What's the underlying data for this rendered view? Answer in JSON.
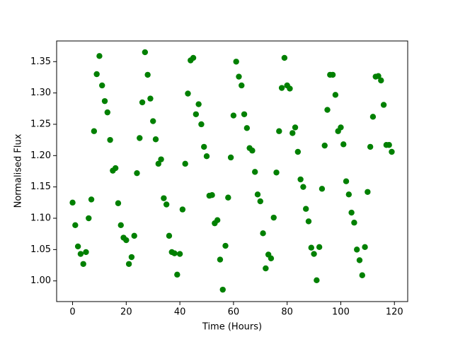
{
  "chart_data": {
    "type": "scatter",
    "xlabel": "Time (Hours)",
    "ylabel": "Normalised Flux",
    "color": "#008000",
    "grid": false,
    "x": [
      0,
      1,
      2,
      3,
      4,
      5,
      6,
      7,
      8,
      9,
      10,
      11,
      12,
      13,
      14,
      15,
      16,
      17,
      18,
      19,
      20,
      21,
      22,
      23,
      24,
      25,
      26,
      27,
      28,
      29,
      30,
      31,
      32,
      33,
      34,
      35,
      36,
      37,
      38,
      39,
      40,
      41,
      42,
      43,
      44,
      45,
      46,
      47,
      48,
      49,
      50,
      51,
      52,
      53,
      54,
      55,
      56,
      57,
      58,
      59,
      60,
      61,
      62,
      63,
      64,
      65,
      66,
      67,
      68,
      69,
      70,
      71,
      72,
      73,
      74,
      75,
      76,
      77,
      78,
      79,
      80,
      81,
      82,
      83,
      84,
      85,
      86,
      87,
      88,
      89,
      90,
      91,
      92,
      93,
      94,
      95,
      96,
      97,
      98,
      99,
      100,
      101,
      102,
      103,
      104,
      105,
      106,
      107,
      108,
      109,
      110,
      111,
      112,
      113,
      114,
      115,
      116,
      117,
      118,
      119
    ],
    "values": [
      1.125,
      1.089,
      1.055,
      1.043,
      1.027,
      1.046,
      1.1,
      1.13,
      1.239,
      1.33,
      1.359,
      1.312,
      1.287,
      1.269,
      1.225,
      1.176,
      1.18,
      1.124,
      1.089,
      1.069,
      1.065,
      1.027,
      1.038,
      1.072,
      1.172,
      1.228,
      1.285,
      1.365,
      1.329,
      1.291,
      1.255,
      1.226,
      1.187,
      1.194,
      1.132,
      1.122,
      1.072,
      1.046,
      1.044,
      1.01,
      1.043,
      1.114,
      1.187,
      1.299,
      1.352,
      1.356,
      1.266,
      1.282,
      1.25,
      1.214,
      1.199,
      1.136,
      1.137,
      1.092,
      1.097,
      1.034,
      0.986,
      1.056,
      1.133,
      1.197,
      1.264,
      1.35,
      1.326,
      1.312,
      1.266,
      1.244,
      1.212,
      1.208,
      1.174,
      1.138,
      1.127,
      1.076,
      1.02,
      1.042,
      1.036,
      1.101,
      1.173,
      1.239,
      1.308,
      1.356,
      1.312,
      1.307,
      1.236,
      1.245,
      1.206,
      1.162,
      1.15,
      1.115,
      1.095,
      1.053,
      1.043,
      1.001,
      1.054,
      1.147,
      1.216,
      1.273,
      1.329,
      1.329,
      1.297,
      1.239,
      1.245,
      1.218,
      1.159,
      1.138,
      1.109,
      1.093,
      1.05,
      1.033,
      1.009,
      1.054,
      1.142,
      1.214,
      1.262,
      1.326,
      1.327,
      1.32,
      1.281,
      1.217,
      1.217,
      1.206
    ],
    "xlim": [
      -5.95,
      124.95
    ],
    "xticks": [
      0,
      20,
      40,
      60,
      80,
      100,
      120
    ],
    "ylim": [
      0.967,
      1.383
    ],
    "yticks": [
      {
        "value": 1.0,
        "label": "1.00"
      },
      1.05,
      {
        "value": 1.1,
        "label": "1.10"
      },
      1.15,
      {
        "value": 1.2,
        "label": "1.20"
      },
      1.25,
      {
        "value": 1.3,
        "label": "1.30"
      },
      1.35
    ]
  }
}
